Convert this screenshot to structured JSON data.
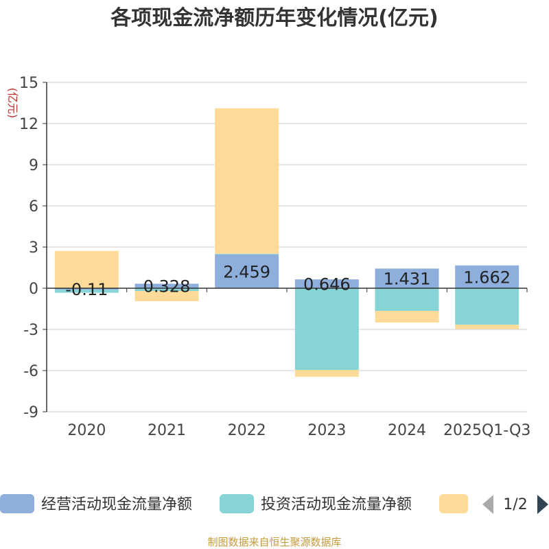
{
  "chart_data": {
    "type": "bar",
    "stacked": true,
    "title": "各项现金流净额历年变化情况(亿元)",
    "ylabel": "(亿元)",
    "xlabel": "",
    "ylim": [
      -9,
      15
    ],
    "yticks": [
      15,
      12,
      9,
      6,
      3,
      0,
      -3,
      -6,
      -9
    ],
    "ytick_labels": [
      "15",
      "12",
      "9",
      "6",
      "3",
      "0",
      "-3",
      "-6",
      "-9"
    ],
    "categories": [
      "2020",
      "2021",
      "2022",
      "2023",
      "2024",
      "2025Q1-Q3"
    ],
    "series": [
      {
        "name": "经营活动现金流量净额",
        "color": "#8eaedc",
        "values": [
          -0.11,
          0.328,
          2.459,
          0.646,
          1.431,
          1.662
        ],
        "labels": [
          "-0.11",
          "0.328",
          "2.459",
          "0.646",
          "1.431",
          "1.662"
        ]
      },
      {
        "name": "投资活动现金流量净额",
        "color": "#86d4d6",
        "values": [
          -0.22,
          -0.2,
          0.05,
          -5.95,
          -1.65,
          -2.66
        ]
      },
      {
        "name": "",
        "color": "#fedb99",
        "values": [
          2.72,
          -0.75,
          10.6,
          -0.5,
          -0.85,
          -0.32
        ]
      }
    ],
    "grid": true,
    "legend_position": "bottom",
    "legend_page": "1/2",
    "source": "制图数据来自恒生聚源数据库",
    "colors": {
      "title": "#333333",
      "axis_title": "#c0302a",
      "tick_text": "#444444",
      "grid": "#cccccc",
      "axis": "#333333",
      "source": "#c49a3a",
      "pager_inactive": "#aaaaaa",
      "pager_active": "#2f4554"
    }
  }
}
